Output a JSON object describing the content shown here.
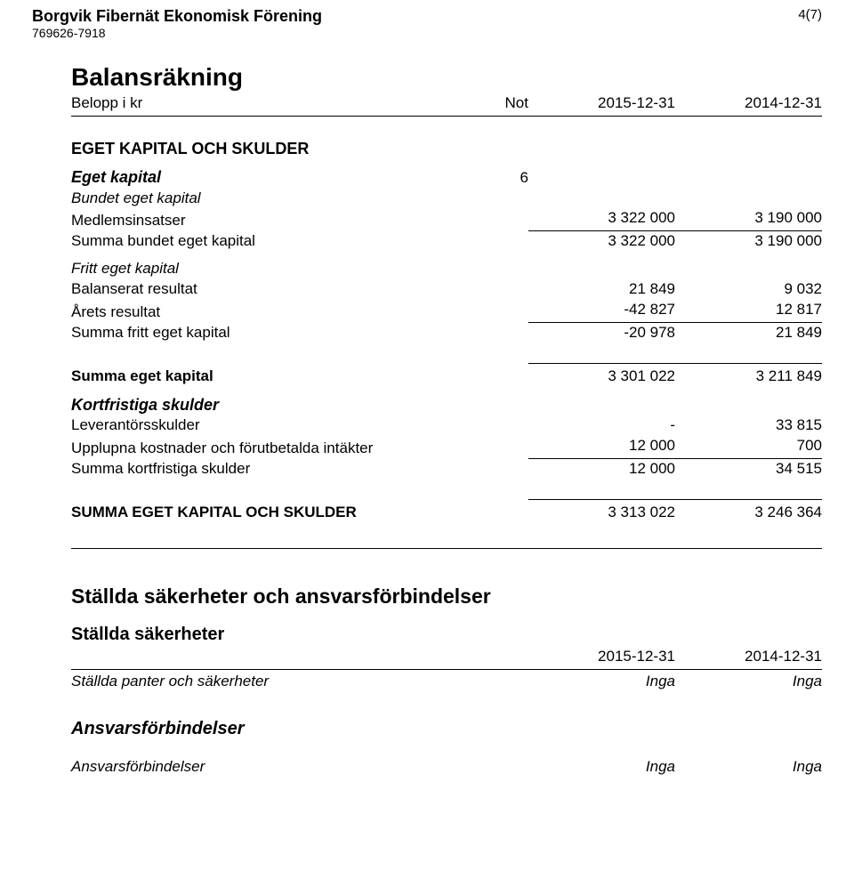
{
  "header": {
    "org_name": "Borgvik Fibernät Ekonomisk Förening",
    "org_id": "769626-7918",
    "page_num": "4(7)"
  },
  "bal": {
    "title": "Balansräkning",
    "belopp_label": "Belopp i kr",
    "not_label": "Not",
    "col1": "2015-12-31",
    "col2": "2014-12-31"
  },
  "eget_section": {
    "title": "EGET KAPITAL OCH SKULDER",
    "eget_kapital_label": "Eget kapital",
    "eget_kapital_note": "6",
    "bundet_label": "Bundet eget kapital",
    "medlems_label": "Medlemsinsatser",
    "medlems_v1": "3 322 000",
    "medlems_v2": "3 190 000",
    "summa_bundet_label": "Summa bundet eget kapital",
    "summa_bundet_v1": "3 322 000",
    "summa_bundet_v2": "3 190 000",
    "fritt_label": "Fritt eget kapital",
    "balres_label": "Balanserat resultat",
    "balres_v1": "21 849",
    "balres_v2": "9 032",
    "arets_label": "Årets resultat",
    "arets_v1": "-42 827",
    "arets_v2": "12 817",
    "summa_fritt_label": "Summa fritt eget kapital",
    "summa_fritt_v1": "-20 978",
    "summa_fritt_v2": "21 849",
    "summa_eget_label": "Summa eget kapital",
    "summa_eget_v1": "3 301 022",
    "summa_eget_v2": "3 211 849",
    "kortfr_label": "Kortfristiga skulder",
    "lev_label": "Leverantörsskulder",
    "lev_v1": "-",
    "lev_v2": "33 815",
    "uppl_label": "Upplupna kostnader och förutbetalda intäkter",
    "uppl_v1": "12 000",
    "uppl_v2": "700",
    "summa_kortfr_label": "Summa kortfristiga skulder",
    "summa_kortfr_v1": "12 000",
    "summa_kortfr_v2": "34 515",
    "summa_total_label": "SUMMA EGET KAPITAL OCH SKULDER",
    "summa_total_v1": "3 313 022",
    "summa_total_v2": "3 246 364"
  },
  "stallda": {
    "title": "Ställda säkerheter och ansvarsförbindelser",
    "sak_title": "Ställda säkerheter",
    "col1": "2015-12-31",
    "col2": "2014-12-31",
    "panter_label": "Ställda panter och säkerheter",
    "panter_v1": "Inga",
    "panter_v2": "Inga",
    "ansvars_title": "Ansvarsförbindelser",
    "ansvars_label": "Ansvarsförbindelser",
    "ansvars_v1": "Inga",
    "ansvars_v2": "Inga"
  }
}
